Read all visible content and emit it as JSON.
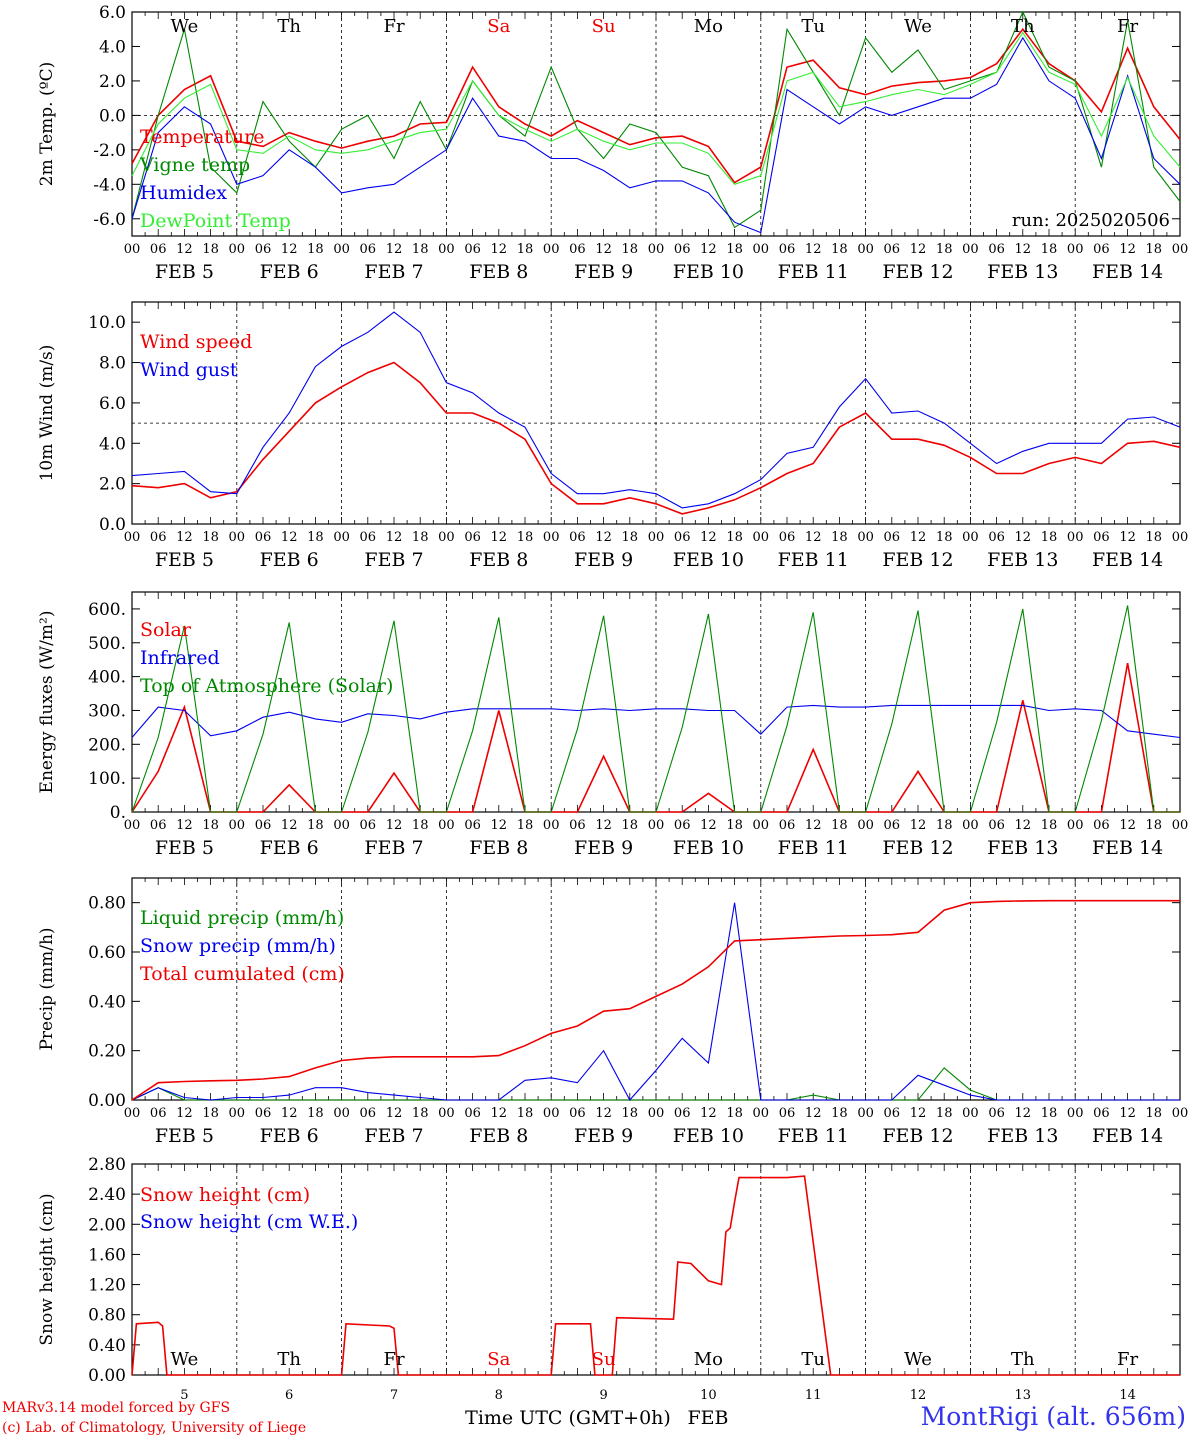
{
  "footer": {
    "credit_line_1": "MARv3.14 model forced by GFS",
    "credit_line_2": "(c) Lab. of Climatology, University of Liege",
    "station": "MontRigi (alt. 656m)"
  },
  "axis": {
    "hour_ticks": [
      "00",
      "06",
      "12",
      "18"
    ],
    "date_labels": [
      "FEB  5",
      "FEB  6",
      "FEB  7",
      "FEB  8",
      "FEB  9",
      "FEB 10",
      "FEB 11",
      "FEB 12",
      "FEB 13",
      "FEB 14"
    ],
    "weekdays": [
      "We",
      "Th",
      "Fr",
      "Sa",
      "Su",
      "Mo",
      "Tu",
      "We",
      "Th",
      "Fr"
    ],
    "weekday_colors": [
      "#000000",
      "#000000",
      "#000000",
      "#ee0000",
      "#ee0000",
      "#000000",
      "#000000",
      "#000000",
      "#000000",
      "#000000"
    ],
    "day_numbers": [
      "5",
      "6",
      "7",
      "8",
      "9",
      "10",
      "11",
      "12",
      "13",
      "14"
    ],
    "bottom_label": "Time UTC (GMT+0h)",
    "bottom_month": "FEB"
  },
  "chart_data": [
    {
      "type": "line",
      "ylabel": "2m Temp. (ºC)",
      "ylim": [
        -7,
        6
      ],
      "yticks": [
        "6.0",
        "4.0",
        "2.0",
        "0.0",
        "-2.0",
        "-4.0",
        "-6.0"
      ],
      "ref_line": 0,
      "annotation": "run: 2025020506",
      "x_hours": [
        0,
        6,
        12,
        18,
        24,
        30,
        36,
        42,
        48,
        54,
        60,
        66,
        72,
        78,
        84,
        90,
        96,
        102,
        108,
        114,
        120,
        126,
        132,
        138,
        144,
        150,
        156,
        162,
        168,
        174,
        180,
        186,
        192,
        198,
        204,
        210,
        216,
        222,
        228,
        234,
        240
      ],
      "series": [
        {
          "name": "Temperature",
          "color": "#ee0000",
          "values": [
            -2.8,
            0.0,
            1.5,
            2.3,
            -1.5,
            -1.8,
            -1.0,
            -1.5,
            -1.9,
            -1.5,
            -1.2,
            -0.5,
            -0.4,
            2.8,
            0.5,
            -0.5,
            -1.2,
            -0.3,
            -1.0,
            -1.7,
            -1.3,
            -1.2,
            -1.8,
            -3.9,
            -3.0,
            2.8,
            3.2,
            1.6,
            1.2,
            1.7,
            1.9,
            2.0,
            2.2,
            3.0,
            5.0,
            3.0,
            2.0,
            0.2,
            3.9,
            0.5,
            -1.4
          ]
        },
        {
          "name": "Vigne temp",
          "color": "#008800",
          "values": [
            -6.0,
            0.0,
            5.0,
            -3.0,
            -4.5,
            0.8,
            -1.5,
            -3.0,
            -0.8,
            0.0,
            -2.5,
            0.8,
            -2.0,
            2.0,
            0.0,
            -1.2,
            2.8,
            -0.8,
            -2.5,
            -0.5,
            -1.0,
            -3.0,
            -3.5,
            -6.5,
            -5.5,
            5.0,
            2.5,
            0.0,
            4.5,
            2.5,
            3.8,
            1.5,
            2.0,
            2.5,
            6.0,
            2.8,
            2.0,
            -3.0,
            5.5,
            -3.0,
            -5.0
          ]
        },
        {
          "name": "Humidex",
          "color": "#0000ee",
          "values": [
            -6.0,
            -1.0,
            0.5,
            -0.5,
            -4.0,
            -3.5,
            -2.0,
            -3.0,
            -4.5,
            -4.2,
            -4.0,
            -3.0,
            -2.0,
            1.0,
            -1.2,
            -1.5,
            -2.5,
            -2.5,
            -3.2,
            -4.2,
            -3.8,
            -3.8,
            -4.5,
            -6.2,
            -6.8,
            1.5,
            0.5,
            -0.5,
            0.5,
            0.0,
            0.5,
            1.0,
            1.0,
            1.8,
            4.5,
            2.0,
            1.0,
            -2.5,
            2.3,
            -2.5,
            -4.0
          ]
        },
        {
          "name": "DewPoint Temp",
          "color": "#33ee33",
          "values": [
            -3.5,
            -0.5,
            1.0,
            1.8,
            -2.0,
            -2.2,
            -1.2,
            -2.0,
            -2.2,
            -2.0,
            -1.5,
            -1.0,
            -0.8,
            2.0,
            0.0,
            -0.8,
            -1.5,
            -0.8,
            -1.5,
            -2.0,
            -1.6,
            -1.6,
            -2.2,
            -4.0,
            -3.5,
            2.0,
            2.5,
            0.5,
            0.8,
            1.2,
            1.5,
            1.2,
            1.8,
            2.5,
            4.8,
            2.5,
            1.8,
            -1.2,
            2.2,
            -1.2,
            -3.0
          ]
        }
      ]
    },
    {
      "type": "line",
      "ylabel": "10m Wind (m/s)",
      "ylim": [
        0,
        11
      ],
      "yticks": [
        "10.0",
        "8.0",
        "6.0",
        "4.0",
        "2.0",
        "0.0"
      ],
      "ref_line": 5,
      "x_hours": [
        0,
        6,
        12,
        18,
        24,
        30,
        36,
        42,
        48,
        54,
        60,
        66,
        72,
        78,
        84,
        90,
        96,
        102,
        108,
        114,
        120,
        126,
        132,
        138,
        144,
        150,
        156,
        162,
        168,
        174,
        180,
        186,
        192,
        198,
        204,
        210,
        216,
        222,
        228,
        234,
        240
      ],
      "series": [
        {
          "name": "Wind speed",
          "color": "#ee0000",
          "values": [
            1.9,
            1.8,
            2.0,
            1.3,
            1.6,
            3.2,
            4.6,
            6.0,
            6.8,
            7.5,
            8.0,
            7.0,
            5.5,
            5.5,
            5.0,
            4.2,
            2.0,
            1.0,
            1.0,
            1.3,
            1.0,
            0.5,
            0.8,
            1.2,
            1.8,
            2.5,
            3.0,
            4.8,
            5.5,
            4.2,
            4.2,
            3.9,
            3.3,
            2.5,
            2.5,
            3.0,
            3.3,
            3.0,
            4.0,
            4.1,
            3.8
          ]
        },
        {
          "name": "Wind gust",
          "color": "#0000ee",
          "values": [
            2.4,
            2.5,
            2.6,
            1.6,
            1.5,
            3.8,
            5.5,
            7.8,
            8.8,
            9.5,
            10.5,
            9.5,
            7.0,
            6.5,
            5.5,
            4.8,
            2.5,
            1.5,
            1.5,
            1.7,
            1.5,
            0.8,
            1.0,
            1.5,
            2.2,
            3.5,
            3.8,
            5.8,
            7.2,
            5.5,
            5.6,
            5.0,
            4.0,
            3.0,
            3.6,
            4.0,
            4.0,
            4.0,
            5.2,
            5.3,
            4.8
          ]
        }
      ]
    },
    {
      "type": "line",
      "ylabel": "Energy fluxes (W/m²)",
      "ylim": [
        0,
        650
      ],
      "yticks": [
        "600.",
        "500.",
        "400.",
        "300.",
        "200.",
        "100.",
        "0."
      ],
      "x_hours": [
        0,
        6,
        12,
        18,
        24,
        30,
        36,
        42,
        48,
        54,
        60,
        66,
        72,
        78,
        84,
        90,
        96,
        102,
        108,
        114,
        120,
        126,
        132,
        138,
        144,
        150,
        156,
        162,
        168,
        174,
        180,
        186,
        192,
        198,
        204,
        210,
        216,
        222,
        228,
        234,
        240
      ],
      "series": [
        {
          "name": "Solar",
          "color": "#ee0000",
          "values": [
            0,
            120,
            310,
            0,
            0,
            0,
            80,
            0,
            0,
            0,
            115,
            0,
            0,
            0,
            300,
            0,
            0,
            0,
            165,
            0,
            0,
            0,
            55,
            0,
            0,
            0,
            185,
            0,
            0,
            0,
            120,
            0,
            0,
            0,
            330,
            0,
            0,
            0,
            440,
            0,
            0
          ]
        },
        {
          "name": "Infrared",
          "color": "#0000ee",
          "values": [
            220,
            310,
            300,
            225,
            240,
            280,
            295,
            275,
            265,
            290,
            285,
            275,
            295,
            305,
            305,
            305,
            305,
            300,
            305,
            300,
            305,
            305,
            300,
            300,
            230,
            310,
            315,
            310,
            310,
            315,
            315,
            315,
            315,
            315,
            315,
            300,
            305,
            300,
            240,
            230,
            220
          ]
        },
        {
          "name": "Top of Atmosphere (Solar)",
          "color": "#008800",
          "values": [
            0,
            220,
            550,
            0,
            0,
            230,
            560,
            0,
            0,
            235,
            565,
            0,
            0,
            240,
            575,
            0,
            0,
            245,
            580,
            0,
            0,
            250,
            585,
            0,
            0,
            255,
            590,
            0,
            0,
            260,
            595,
            0,
            0,
            265,
            600,
            0,
            0,
            270,
            610,
            0,
            0
          ]
        }
      ]
    },
    {
      "type": "line",
      "ylabel": "Precip (mm/h)",
      "ylim": [
        0,
        0.9
      ],
      "yticks": [
        "0.80",
        "0.60",
        "0.40",
        "0.20",
        "0.00"
      ],
      "x_hours": [
        0,
        6,
        12,
        18,
        24,
        30,
        36,
        42,
        48,
        54,
        60,
        66,
        72,
        78,
        84,
        90,
        96,
        102,
        108,
        114,
        120,
        126,
        132,
        138,
        144,
        150,
        156,
        162,
        168,
        174,
        180,
        186,
        192,
        198,
        204,
        210,
        216,
        222,
        228,
        234,
        240
      ],
      "series": [
        {
          "name": "Liquid precip (mm/h)",
          "color": "#008800",
          "values": [
            0,
            0.05,
            0,
            0,
            0,
            0,
            0,
            0,
            0,
            0,
            0,
            0,
            0,
            0,
            0,
            0,
            0,
            0,
            0,
            0,
            0,
            0,
            0,
            0,
            0,
            0,
            0.02,
            0,
            0,
            0,
            0,
            0.13,
            0.04,
            0,
            0,
            0,
            0,
            0,
            0,
            0,
            0
          ]
        },
        {
          "name": "Snow precip (mm/h)",
          "color": "#0000ee",
          "values": [
            0,
            0.05,
            0.01,
            0,
            0.01,
            0.01,
            0.02,
            0.05,
            0.05,
            0.03,
            0.02,
            0.01,
            0,
            0,
            0,
            0.08,
            0.09,
            0.07,
            0.2,
            0,
            0.12,
            0.25,
            0.15,
            0.8,
            0,
            0,
            0,
            0,
            0,
            0,
            0.1,
            0.06,
            0.02,
            0,
            0,
            0,
            0,
            0,
            0,
            0,
            0
          ]
        },
        {
          "name": "Total cumulated (cm)",
          "color": "#ee0000",
          "values": [
            0,
            0.07,
            0.075,
            0.078,
            0.08,
            0.085,
            0.095,
            0.13,
            0.16,
            0.17,
            0.175,
            0.175,
            0.175,
            0.175,
            0.18,
            0.22,
            0.27,
            0.3,
            0.36,
            0.37,
            0.42,
            0.47,
            0.54,
            0.645,
            0.65,
            0.655,
            0.66,
            0.665,
            0.667,
            0.67,
            0.68,
            0.77,
            0.8,
            0.805,
            0.807,
            0.808,
            0.808,
            0.808,
            0.808,
            0.808,
            0.808
          ]
        }
      ]
    },
    {
      "type": "line",
      "ylabel": "Snow height (cm)",
      "ylim": [
        0,
        2.8
      ],
      "yticks": [
        "2.80",
        "2.40",
        "2.00",
        "1.60",
        "1.20",
        "0.80",
        "0.40",
        "0.00"
      ],
      "series": [
        {
          "name": "Snow height (cm)",
          "color": "#ee0000",
          "points": [
            [
              0,
              0
            ],
            [
              1,
              0.68
            ],
            [
              6,
              0.7
            ],
            [
              7,
              0.65
            ],
            [
              8,
              0
            ],
            [
              48,
              0
            ],
            [
              49,
              0.68
            ],
            [
              59,
              0.65
            ],
            [
              60,
              0.62
            ],
            [
              61,
              0
            ],
            [
              96,
              0
            ],
            [
              97,
              0.68
            ],
            [
              105,
              0.68
            ],
            [
              106,
              0
            ],
            [
              110,
              0
            ],
            [
              111,
              0.76
            ],
            [
              124,
              0.74
            ],
            [
              125,
              1.5
            ],
            [
              128,
              1.48
            ],
            [
              132,
              1.25
            ],
            [
              135,
              1.2
            ],
            [
              136,
              1.9
            ],
            [
              137,
              1.95
            ],
            [
              138,
              2.3
            ],
            [
              139,
              2.62
            ],
            [
              150,
              2.62
            ],
            [
              154,
              2.64
            ],
            [
              160,
              0
            ],
            [
              240,
              0
            ]
          ]
        },
        {
          "name": "Snow height (cm W.E.)",
          "color": "#0000ee",
          "points": []
        }
      ]
    }
  ]
}
